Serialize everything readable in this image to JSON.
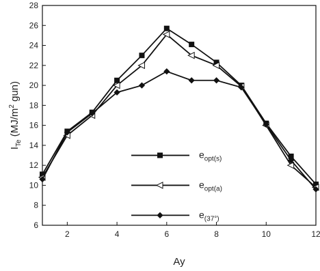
{
  "chart_data": {
    "type": "line",
    "xlabel": "Ay",
    "ylabel": "I",
    "ylabel_sub": "Te",
    "ylabel_rest": " (MJ/m",
    "ylabel_sup": "2",
    "ylabel_end": " gun)",
    "xlim": [
      1,
      12
    ],
    "ylim": [
      6,
      28
    ],
    "x_ticks": [
      "2",
      "4",
      "6",
      "8",
      "10",
      "12"
    ],
    "y_ticks": [
      "6",
      "8",
      "10",
      "12",
      "14",
      "16",
      "18",
      "20",
      "22",
      "24",
      "26",
      "28"
    ],
    "grid": false,
    "legend_position": "center",
    "x": [
      1,
      2,
      3,
      4,
      5,
      6,
      7,
      8,
      9,
      10,
      11,
      12
    ],
    "series": [
      {
        "name": "e_opt(s)",
        "legend_main": "e",
        "legend_sub": "opt(s)",
        "marker": "square",
        "values": [
          11.1,
          15.4,
          17.3,
          20.5,
          23.0,
          25.7,
          24.1,
          22.3,
          20.0,
          16.2,
          12.9,
          10.1
        ]
      },
      {
        "name": "e_opt(a)",
        "legend_main": "e",
        "legend_sub": "opt(a)",
        "marker": "triangle-left",
        "values": [
          10.8,
          15.0,
          17.0,
          20.0,
          22.0,
          25.1,
          23.0,
          22.0,
          19.9,
          16.0,
          12.0,
          9.8
        ]
      },
      {
        "name": "e_(37°)",
        "legend_main": "e",
        "legend_sub": "(37°)",
        "marker": "diamond",
        "values": [
          10.6,
          15.3,
          17.2,
          19.3,
          20.0,
          21.4,
          20.5,
          20.5,
          19.8,
          16.1,
          12.5,
          9.6
        ]
      }
    ]
  }
}
